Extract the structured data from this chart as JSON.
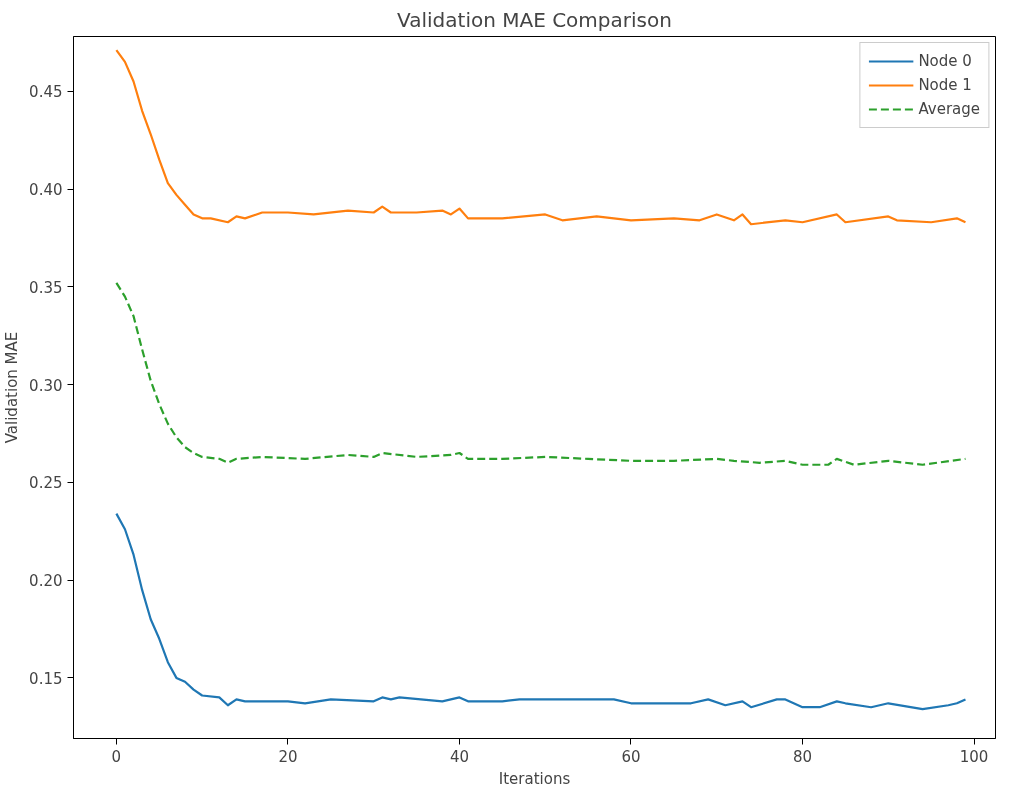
{
  "chart_data": {
    "type": "line",
    "title": "Validation MAE Comparison",
    "xlabel": "Iterations",
    "ylabel": "Validation MAE",
    "xlim": [
      -5,
      102.5
    ],
    "ylim": [
      0.119,
      0.478
    ],
    "xticks": [
      0,
      20,
      40,
      60,
      80,
      100
    ],
    "yticks": [
      {
        "value": 0.15,
        "label": "0.15"
      },
      {
        "value": 0.2,
        "label": "0.20"
      },
      {
        "value": 0.25,
        "label": "0.25"
      },
      {
        "value": 0.3,
        "label": "0.30"
      },
      {
        "value": 0.35,
        "label": "0.35"
      },
      {
        "value": 0.4,
        "label": "0.40"
      },
      {
        "value": 0.45,
        "label": "0.45"
      }
    ],
    "grid": false,
    "legend": "top right",
    "series": [
      {
        "name": "Node 0",
        "color": "#1f77b4",
        "line_style": "solid",
        "x": [
          0,
          1,
          2,
          3,
          4,
          5,
          6,
          7,
          8,
          9,
          10,
          12,
          13,
          14,
          15,
          20,
          22,
          25,
          30,
          31,
          32,
          33,
          38,
          40,
          41,
          45,
          47,
          50,
          55,
          58,
          60,
          63,
          67,
          69,
          71,
          73,
          74,
          77,
          78,
          80,
          82,
          84,
          85,
          88,
          90,
          94,
          97,
          98,
          99
        ],
        "values": [
          0.234,
          0.226,
          0.213,
          0.195,
          0.18,
          0.17,
          0.158,
          0.15,
          0.148,
          0.144,
          0.141,
          0.14,
          0.136,
          0.139,
          0.138,
          0.138,
          0.137,
          0.139,
          0.138,
          0.14,
          0.139,
          0.14,
          0.138,
          0.14,
          0.138,
          0.138,
          0.139,
          0.139,
          0.139,
          0.139,
          0.137,
          0.137,
          0.137,
          0.139,
          0.136,
          0.138,
          0.135,
          0.139,
          0.139,
          0.135,
          0.135,
          0.138,
          0.137,
          0.135,
          0.137,
          0.134,
          0.136,
          0.137,
          0.139
        ]
      },
      {
        "name": "Node 1",
        "color": "#ff7f0e",
        "line_style": "solid",
        "x": [
          0,
          1,
          2,
          3,
          4,
          5,
          6,
          7,
          8,
          9,
          10,
          11,
          13,
          14,
          15,
          17,
          20,
          23,
          27,
          30,
          31,
          32,
          35,
          38,
          39,
          40,
          41,
          45,
          50,
          52,
          56,
          60,
          65,
          68,
          70,
          72,
          73,
          74,
          78,
          80,
          84,
          85,
          90,
          91,
          95,
          98,
          99
        ],
        "values": [
          0.471,
          0.465,
          0.455,
          0.44,
          0.428,
          0.415,
          0.403,
          0.397,
          0.392,
          0.387,
          0.385,
          0.385,
          0.383,
          0.386,
          0.385,
          0.388,
          0.388,
          0.387,
          0.389,
          0.388,
          0.391,
          0.388,
          0.388,
          0.389,
          0.387,
          0.39,
          0.385,
          0.385,
          0.387,
          0.384,
          0.386,
          0.384,
          0.385,
          0.384,
          0.387,
          0.384,
          0.387,
          0.382,
          0.384,
          0.383,
          0.387,
          0.383,
          0.386,
          0.384,
          0.383,
          0.385,
          0.383
        ]
      },
      {
        "name": "Average",
        "color": "#2ca02c",
        "line_style": "dashed",
        "x": [
          0,
          1,
          2,
          3,
          4,
          5,
          6,
          7,
          8,
          9,
          10,
          12,
          13,
          14,
          17,
          22,
          27,
          30,
          31,
          35,
          39,
          40,
          41,
          45,
          50,
          55,
          60,
          65,
          70,
          72,
          75,
          78,
          80,
          83,
          84,
          86,
          90,
          94,
          99
        ],
        "values": [
          0.352,
          0.345,
          0.335,
          0.318,
          0.302,
          0.29,
          0.28,
          0.273,
          0.268,
          0.265,
          0.263,
          0.262,
          0.26,
          0.262,
          0.263,
          0.262,
          0.264,
          0.263,
          0.265,
          0.263,
          0.264,
          0.265,
          0.262,
          0.262,
          0.263,
          0.262,
          0.261,
          0.261,
          0.262,
          0.261,
          0.26,
          0.261,
          0.259,
          0.259,
          0.262,
          0.259,
          0.261,
          0.259,
          0.262
        ]
      }
    ]
  }
}
